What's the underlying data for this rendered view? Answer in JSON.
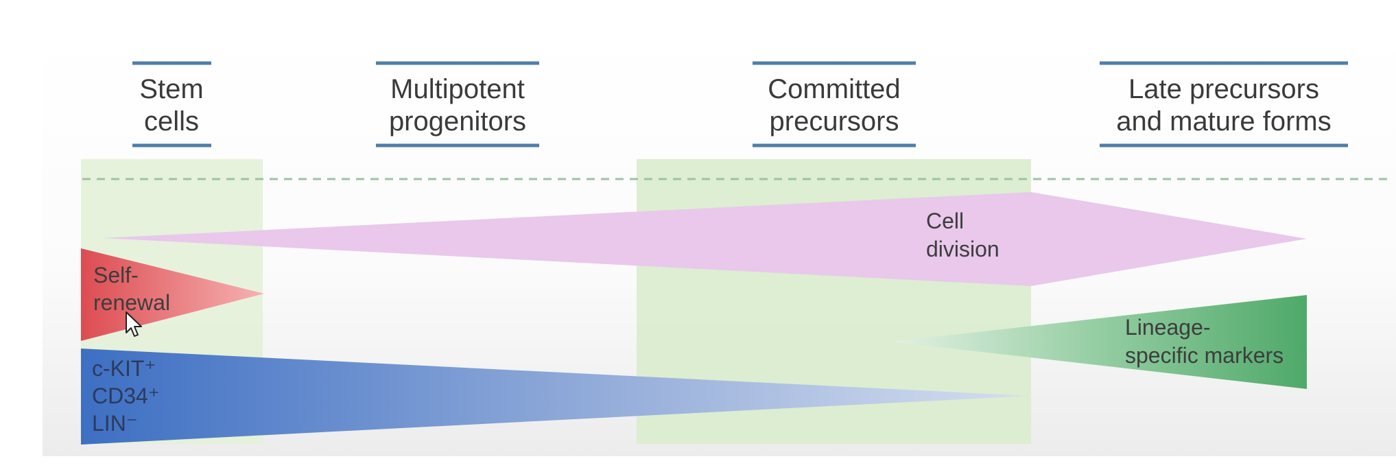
{
  "stages": [
    {
      "line1": "Stem",
      "line2": "cells"
    },
    {
      "line1": "Multipotent",
      "line2": "progenitors"
    },
    {
      "line1": "Committed",
      "line2": "precursors"
    },
    {
      "line1": "Late precursors",
      "line2": "and mature forms"
    }
  ],
  "bands": {
    "cell_division": {
      "line1": "Cell",
      "line2": "division"
    },
    "self_renewal": {
      "line1": "Self-",
      "line2": "renewal"
    },
    "lineage_markers": {
      "line1": "Lineage-",
      "line2": "specific markers"
    },
    "surface_markers": {
      "line1": "c-KIT⁺",
      "line2": "CD34⁺",
      "line3": "LIN⁻"
    }
  },
  "colors": {
    "stem_zone": "#e3f1d8",
    "committed_zone": "#d9ecce",
    "cell_division": "#a866b6",
    "self_renewal": "#e0545a",
    "lineage_markers": "#58ae74",
    "surface_markers": "#3e6fc2",
    "title_bar": "#4f7ea8"
  }
}
